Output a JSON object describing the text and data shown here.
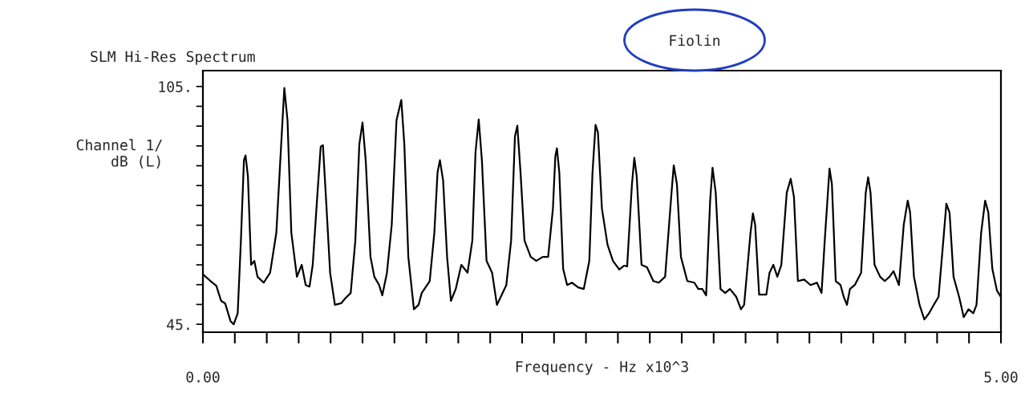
{
  "chart_data": {
    "type": "line",
    "title": "SLM Hi-Res Spectrum",
    "xlabel": "Frequency - Hz x10^3",
    "ylabel": "Channel 1/\ndB (L)",
    "annotations": [
      "Fiolin"
    ],
    "xlim": [
      0,
      5
    ],
    "ylim": [
      43,
      109
    ],
    "xticks": [
      {
        "value": 0,
        "label": "0.00"
      },
      {
        "value": 0.2,
        "label": null
      },
      {
        "value": 0.4,
        "label": null
      },
      {
        "value": 0.6,
        "label": null
      },
      {
        "value": 0.8,
        "label": null
      },
      {
        "value": 1.0,
        "label": null
      },
      {
        "value": 1.2,
        "label": null
      },
      {
        "value": 1.4,
        "label": null
      },
      {
        "value": 1.6,
        "label": null
      },
      {
        "value": 1.8,
        "label": null
      },
      {
        "value": 2.0,
        "label": null
      },
      {
        "value": 2.2,
        "label": null
      },
      {
        "value": 2.4,
        "label": null
      },
      {
        "value": 2.6,
        "label": null
      },
      {
        "value": 2.8,
        "label": null
      },
      {
        "value": 3.0,
        "label": null
      },
      {
        "value": 3.2,
        "label": null
      },
      {
        "value": 3.4,
        "label": null
      },
      {
        "value": 3.6,
        "label": null
      },
      {
        "value": 3.8,
        "label": null
      },
      {
        "value": 4.0,
        "label": null
      },
      {
        "value": 4.2,
        "label": null
      },
      {
        "value": 4.4,
        "label": null
      },
      {
        "value": 4.6,
        "label": null
      },
      {
        "value": 4.8,
        "label": null
      },
      {
        "value": 5,
        "label": "5.00"
      }
    ],
    "yticks": [
      {
        "value": 45,
        "label": "45."
      },
      {
        "value": 50,
        "label": null
      },
      {
        "value": 55,
        "label": null
      },
      {
        "value": 60,
        "label": null
      },
      {
        "value": 65,
        "label": null
      },
      {
        "value": 70,
        "label": null
      },
      {
        "value": 75,
        "label": null
      },
      {
        "value": 80,
        "label": null
      },
      {
        "value": 85,
        "label": null
      },
      {
        "value": 90,
        "label": null
      },
      {
        "value": 95,
        "label": null
      },
      {
        "value": 100,
        "label": null
      },
      {
        "value": 105,
        "label": "105."
      }
    ],
    "grid": false,
    "legend": false,
    "series": [
      {
        "color": "#000000",
        "x": [
          0,
          0.045,
          0.084,
          0.114,
          0.139,
          0.173,
          0.193,
          0.218,
          0.238,
          0.257,
          0.267,
          0.282,
          0.302,
          0.322,
          0.342,
          0.381,
          0.421,
          0.46,
          0.485,
          0.51,
          0.53,
          0.554,
          0.589,
          0.619,
          0.644,
          0.668,
          0.688,
          0.718,
          0.738,
          0.752,
          0.772,
          0.797,
          0.827,
          0.866,
          0.891,
          0.926,
          0.955,
          0.98,
          1.0,
          1.02,
          1.05,
          1.074,
          1.104,
          1.124,
          1.153,
          1.183,
          1.213,
          1.243,
          1.262,
          1.287,
          1.322,
          1.351,
          1.371,
          1.421,
          1.45,
          1.47,
          1.485,
          1.505,
          1.53,
          1.554,
          1.584,
          1.619,
          1.658,
          1.688,
          1.708,
          1.728,
          1.748,
          1.777,
          1.812,
          1.842,
          1.866,
          1.901,
          1.931,
          1.955,
          1.97,
          1.99,
          2.015,
          2.054,
          2.089,
          2.129,
          2.163,
          2.193,
          2.208,
          2.218,
          2.233,
          2.257,
          2.282,
          2.312,
          2.351,
          2.386,
          2.421,
          2.441,
          2.46,
          2.475,
          2.5,
          2.535,
          2.569,
          2.609,
          2.639,
          2.658,
          2.688,
          2.703,
          2.718,
          2.748,
          2.782,
          2.822,
          2.856,
          2.896,
          2.936,
          2.95,
          2.97,
          2.995,
          3.035,
          3.079,
          3.104,
          3.129,
          3.153,
          3.178,
          3.193,
          3.213,
          3.243,
          3.272,
          3.302,
          3.342,
          3.371,
          3.391,
          3.431,
          3.446,
          3.46,
          3.485,
          3.53,
          3.55,
          3.574,
          3.599,
          3.624,
          3.658,
          3.683,
          3.703,
          3.728,
          3.767,
          3.807,
          3.847,
          3.876,
          3.896,
          3.926,
          3.941,
          3.965,
          3.995,
          4.015,
          4.035,
          4.054,
          4.084,
          4.124,
          4.153,
          4.168,
          4.183,
          4.208,
          4.243,
          4.272,
          4.302,
          4.327,
          4.361,
          4.391,
          4.416,
          4.431,
          4.455,
          4.49,
          4.52,
          4.55,
          4.579,
          4.609,
          4.639,
          4.658,
          4.678,
          4.703,
          4.738,
          4.767,
          4.797,
          4.827,
          4.847,
          4.876,
          4.901,
          4.921,
          4.946,
          4.975,
          5.0
        ],
        "values": [
          57.6,
          56.0,
          54.7,
          50.9,
          50.3,
          45.8,
          45.0,
          47.8,
          66.1,
          86.4,
          87.6,
          82.3,
          60.0,
          61.0,
          57.0,
          55.5,
          58.0,
          68.1,
          86.4,
          104.6,
          96.5,
          68.1,
          57.0,
          60.0,
          54.9,
          54.5,
          60.0,
          78.2,
          89.8,
          90.2,
          76.2,
          58.0,
          49.9,
          50.3,
          51.5,
          52.9,
          66.1,
          90.4,
          95.9,
          86.4,
          62.0,
          57.0,
          54.9,
          52.3,
          58.0,
          70.1,
          96.5,
          101.6,
          90.4,
          62.0,
          48.8,
          49.9,
          52.9,
          55.9,
          68.1,
          83.3,
          86.4,
          81.3,
          62.0,
          50.9,
          53.9,
          60.0,
          58.0,
          66.1,
          88.4,
          96.7,
          86.4,
          61.0,
          58.0,
          49.9,
          51.9,
          54.9,
          66.1,
          92.4,
          95.1,
          83.3,
          66.1,
          62.0,
          61.0,
          62.0,
          62.0,
          74.2,
          87.4,
          89.4,
          83.3,
          59.0,
          54.9,
          55.5,
          54.3,
          53.9,
          61.0,
          83.3,
          95.3,
          93.4,
          74.2,
          65.1,
          61.0,
          58.8,
          59.8,
          59.6,
          80.3,
          87.0,
          82.3,
          60.0,
          59.4,
          55.9,
          55.5,
          57.0,
          78.2,
          85.1,
          80.3,
          62.0,
          55.9,
          55.5,
          53.9,
          53.9,
          52.3,
          76.2,
          84.5,
          78.2,
          53.9,
          52.9,
          53.9,
          51.9,
          48.8,
          49.9,
          68.1,
          73.0,
          70.1,
          52.5,
          52.5,
          58.0,
          60.0,
          57.0,
          60.0,
          78.2,
          81.7,
          77.2,
          55.9,
          56.3,
          54.9,
          55.5,
          52.9,
          66.1,
          84.3,
          80.3,
          55.9,
          54.9,
          51.9,
          49.9,
          53.9,
          54.9,
          58.0,
          78.2,
          82.1,
          78.2,
          60.0,
          57.0,
          55.9,
          57.0,
          58.4,
          54.9,
          70.1,
          76.2,
          73.2,
          57.0,
          49.9,
          46.2,
          47.8,
          49.9,
          51.9,
          66.1,
          75.4,
          73.2,
          57.0,
          51.9,
          46.8,
          48.8,
          47.8,
          49.9,
          68.1,
          76.2,
          73.2,
          59.0,
          53.5,
          51.9
        ]
      }
    ]
  }
}
